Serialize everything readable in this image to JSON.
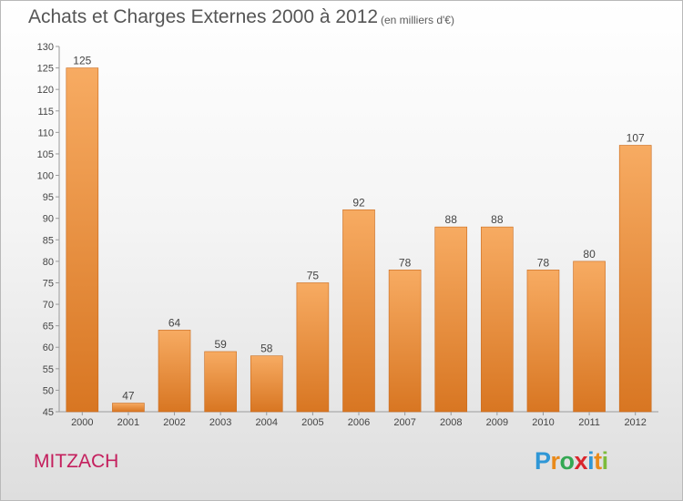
{
  "header": {
    "title": "Achats et Charges Externes 2000 à 2012",
    "subtitle": "(en milliers d'€)"
  },
  "footer": {
    "place": "MITZACH",
    "brand": "Proxiti",
    "brand_letters": [
      {
        "char": "P",
        "color": "#2f97d6"
      },
      {
        "char": "r",
        "color": "#e98a1a"
      },
      {
        "char": "o",
        "color": "#34a853"
      },
      {
        "char": "x",
        "color": "#d9262d"
      },
      {
        "char": "i",
        "color": "#2f97d6"
      },
      {
        "char": "t",
        "color": "#e98a1a"
      },
      {
        "char": "i",
        "color": "#7dbc3b"
      }
    ]
  },
  "chart_data": {
    "type": "bar",
    "categories": [
      "2000",
      "2001",
      "2002",
      "2003",
      "2004",
      "2005",
      "2006",
      "2007",
      "2008",
      "2009",
      "2010",
      "2011",
      "2012"
    ],
    "values": [
      125,
      47,
      64,
      59,
      58,
      75,
      92,
      78,
      88,
      88,
      78,
      80,
      107
    ],
    "title": "Achats et Charges Externes 2000 à 2012",
    "xlabel": "",
    "ylabel": "",
    "ylim": [
      45,
      130
    ],
    "yticks": [
      45,
      50,
      55,
      60,
      65,
      70,
      75,
      80,
      85,
      90,
      95,
      100,
      105,
      110,
      115,
      120,
      125,
      130
    ],
    "grid": false,
    "bar_color": "#e9862f",
    "bar_highlight": "#f7ab62"
  }
}
